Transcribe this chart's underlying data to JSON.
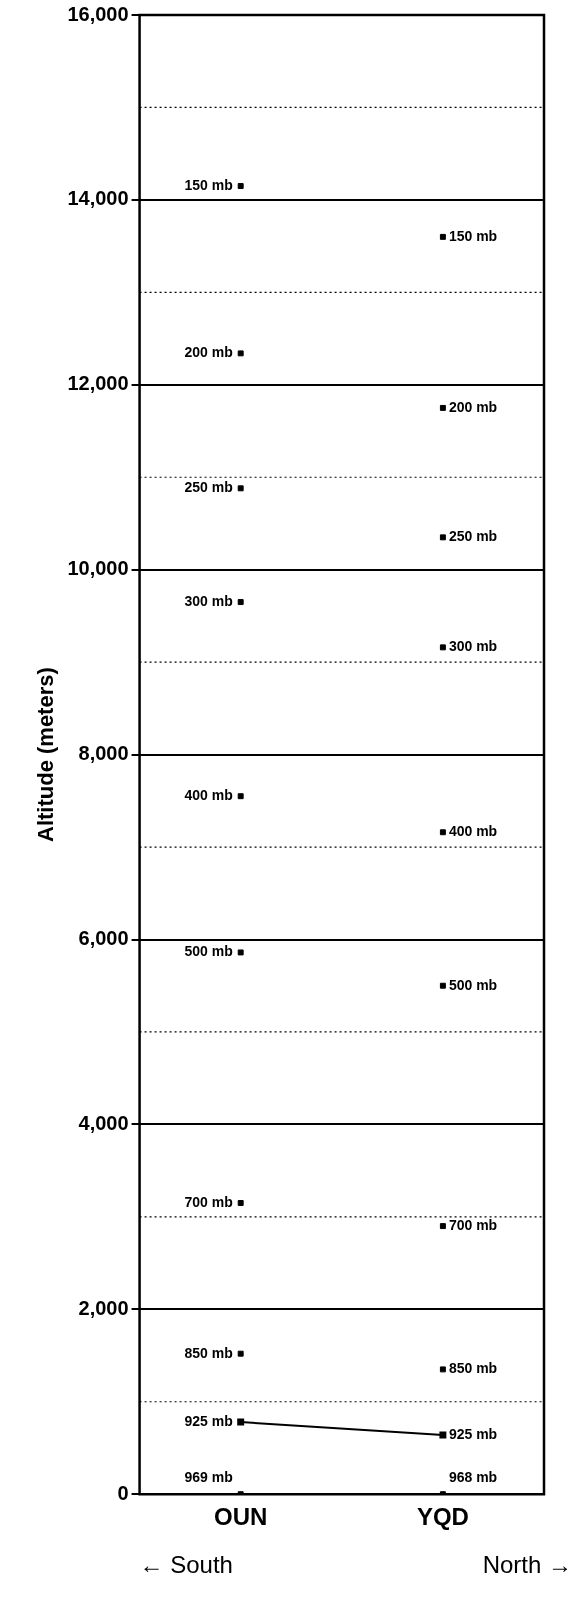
{
  "chart_data": {
    "type": "scatter",
    "ylabel": "Altitude (meters)",
    "categories": [
      "OUN",
      "YQD"
    ],
    "ylim": [
      0,
      16000
    ],
    "yticks": [
      0,
      {
        "value": 2000,
        "label": "2,000"
      },
      {
        "value": 4000,
        "label": "4,000"
      },
      {
        "value": 6000,
        "label": "6,000"
      },
      {
        "value": 8000,
        "label": "8,000"
      },
      {
        "value": 10000,
        "label": "10,000"
      },
      {
        "value": 12000,
        "label": "12,000"
      },
      {
        "value": 14000,
        "label": "14,000"
      },
      {
        "value": 16000,
        "label": "16,000"
      }
    ],
    "grid": "y",
    "marker": "square",
    "series": [
      {
        "name": "150 mb",
        "color": "#000000",
        "values": [
          14150,
          13600
        ]
      },
      {
        "name": "200 mb",
        "color": "#000000",
        "values": [
          12340,
          11750
        ]
      },
      {
        "name": "250 mb",
        "color": "#000000",
        "values": [
          10880,
          10350
        ]
      },
      {
        "name": "300 mb",
        "color": "#000000",
        "values": [
          9650,
          9160
        ]
      },
      {
        "name": "400 mb",
        "color": "#000000",
        "values": [
          7550,
          7160
        ]
      },
      {
        "name": "500 mb",
        "color": "#000000",
        "values": [
          5860,
          5500
        ]
      },
      {
        "name": "700 mb",
        "color": "#000000",
        "values": [
          3150,
          2900
        ]
      },
      {
        "name": "850 mb",
        "color": "#000000",
        "values": [
          1520,
          1350
        ]
      },
      {
        "name": "925 mb",
        "type": "line",
        "line_style": "solid",
        "color": "#000000",
        "values": [
          780,
          640
        ]
      },
      {
        "name": "969 mb",
        "color": "#000000",
        "values": [
          0,
          null
        ]
      },
      {
        "name": "968 mb",
        "color": "#000000",
        "values": [
          null,
          0
        ]
      }
    ],
    "ref_lines": [
      {
        "axis": "y",
        "value": 1000,
        "line_style": "dotted"
      },
      {
        "axis": "y",
        "value": 3000,
        "line_style": "dotted"
      },
      {
        "axis": "y",
        "value": 5000,
        "line_style": "dotted"
      },
      {
        "axis": "y",
        "value": 7000,
        "line_style": "dotted"
      },
      {
        "axis": "y",
        "value": 9000,
        "line_style": "dotted"
      },
      {
        "axis": "y",
        "value": 11000,
        "line_style": "dotted"
      },
      {
        "axis": "y",
        "value": 13000,
        "line_style": "dotted"
      },
      {
        "axis": "y",
        "value": 15000,
        "line_style": "dotted"
      }
    ],
    "annotations": [
      "← South",
      "North →"
    ]
  }
}
